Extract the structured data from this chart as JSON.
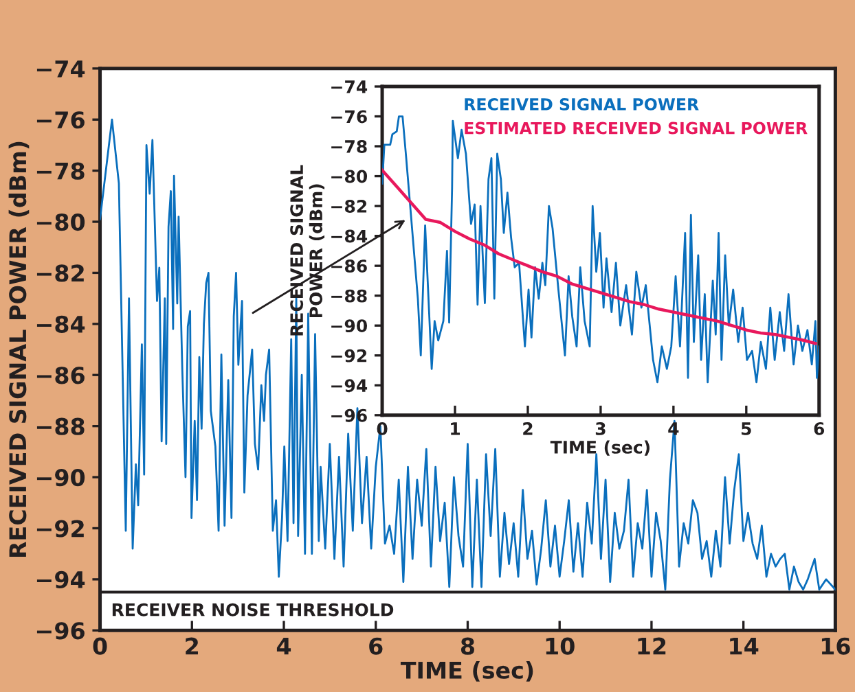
{
  "chart_data": [
    {
      "type": "line",
      "xlabel": "TIME (sec)",
      "ylabel": "RECEIVED SIGNAL POWER (dBm)",
      "xlim": [
        0,
        16
      ],
      "ylim": [
        -96,
        -74
      ],
      "xticks": [
        0,
        2,
        4,
        6,
        8,
        10,
        12,
        14,
        16
      ],
      "yticks": [
        -96,
        -94,
        -92,
        -90,
        -88,
        -86,
        -84,
        -82,
        -80,
        -78,
        -76,
        -74
      ],
      "grid": false,
      "legend": false,
      "marker": "none",
      "line_style": "solid",
      "ref_lines": [
        {
          "axis": "y",
          "value": -94.5,
          "label": "RECEIVER NOISE THRESHOLD",
          "color": "#231f20",
          "line_style": "solid"
        }
      ],
      "series": [
        {
          "color": "#0a6fbd",
          "x": [
            0,
            0.26,
            0.41,
            0.56,
            0.63,
            0.71,
            0.78,
            0.83,
            0.91,
            0.96,
            1.01,
            1.08,
            1.14,
            1.24,
            1.29,
            1.34,
            1.41,
            1.44,
            1.49,
            1.54,
            1.59,
            1.61,
            1.68,
            1.71,
            1.79,
            1.86,
            1.91,
            1.96,
            1.99,
            2.06,
            2.11,
            2.16,
            2.21,
            2.26,
            2.31,
            2.36,
            2.41,
            2.51,
            2.58,
            2.64,
            2.71,
            2.79,
            2.86,
            2.91,
            2.96,
            3.01,
            3.09,
            3.14,
            3.21,
            3.31,
            3.37,
            3.44,
            3.51,
            3.57,
            3.61,
            3.68,
            3.76,
            3.83,
            3.89,
            3.96,
            4.01,
            4.08,
            4.16,
            4.21,
            4.27,
            4.31,
            4.39,
            4.46,
            4.53,
            4.61,
            4.68,
            4.76,
            4.8,
            4.9,
            5.0,
            5.1,
            5.2,
            5.3,
            5.4,
            5.5,
            5.6,
            5.7,
            5.8,
            5.9,
            6.0,
            6.1,
            6.2,
            6.3,
            6.4,
            6.5,
            6.6,
            6.7,
            6.8,
            6.9,
            7.0,
            7.1,
            7.2,
            7.3,
            7.4,
            7.5,
            7.6,
            7.7,
            7.8,
            7.9,
            8.0,
            8.1,
            8.2,
            8.3,
            8.4,
            8.5,
            8.6,
            8.7,
            8.8,
            8.9,
            9.0,
            9.1,
            9.2,
            9.3,
            9.4,
            9.5,
            9.6,
            9.7,
            9.8,
            9.9,
            10.0,
            10.1,
            10.2,
            10.3,
            10.4,
            10.5,
            10.6,
            10.7,
            10.8,
            10.9,
            11.0,
            11.1,
            11.2,
            11.3,
            11.4,
            11.5,
            11.6,
            11.7,
            11.8,
            11.9,
            12.0,
            12.1,
            12.2,
            12.3,
            12.4,
            12.5,
            12.6,
            12.7,
            12.8,
            12.9,
            13.0,
            13.1,
            13.2,
            13.3,
            13.4,
            13.5,
            13.6,
            13.7,
            13.8,
            13.9,
            14.0,
            14.1,
            14.2,
            14.3,
            14.4,
            14.5,
            14.6,
            14.7,
            14.8,
            14.9,
            15.0,
            15.1,
            15.2,
            15.3,
            15.4,
            15.55,
            15.65,
            15.8,
            16.0
          ],
          "values": [
            -79.9,
            -76,
            -78.5,
            -92.1,
            -83,
            -92.8,
            -89.5,
            -91.1,
            -84.8,
            -89.9,
            -77,
            -78.9,
            -76.8,
            -83.1,
            -81.8,
            -88.6,
            -83,
            -88.7,
            -80.2,
            -78.8,
            -84.2,
            -78.2,
            -83.2,
            -79.8,
            -85.8,
            -90,
            -84.1,
            -83.5,
            -91.6,
            -87.8,
            -90.9,
            -85.3,
            -88.1,
            -84,
            -82.4,
            -82,
            -87.4,
            -88.8,
            -92.1,
            -85.2,
            -91.9,
            -86.2,
            -91.6,
            -83.7,
            -82,
            -85.6,
            -83.1,
            -90.6,
            -86.8,
            -85,
            -88.7,
            -89.7,
            -86.4,
            -87.8,
            -86,
            -85,
            -92.1,
            -90.9,
            -93.9,
            -91.6,
            -88.8,
            -92.5,
            -84.6,
            -91.8,
            -83,
            -92.3,
            -86,
            -93,
            -83.6,
            -93,
            -84.4,
            -92.5,
            -89.6,
            -92.8,
            -88.7,
            -93.2,
            -89.2,
            -93.5,
            -88.3,
            -92.1,
            -87.3,
            -91.8,
            -89.2,
            -92.8,
            -89.6,
            -88,
            -92.6,
            -91.9,
            -93,
            -90.1,
            -94.1,
            -89.6,
            -93.2,
            -90.1,
            -91.9,
            -88.9,
            -93.5,
            -89.6,
            -92.5,
            -91,
            -94.3,
            -90,
            -92.3,
            -93.5,
            -88.7,
            -94.3,
            -90.1,
            -94.3,
            -89.1,
            -92.3,
            -88.9,
            -93.9,
            -91.4,
            -93.4,
            -91.8,
            -93.9,
            -90.5,
            -93.2,
            -92.1,
            -94.2,
            -92.8,
            -90.9,
            -93.5,
            -91.9,
            -93.9,
            -92.5,
            -90.9,
            -93.7,
            -91.8,
            -93.9,
            -91,
            -92.6,
            -89.1,
            -93.2,
            -90.1,
            -94.1,
            -91.4,
            -92.8,
            -92.1,
            -90.1,
            -93.9,
            -91.8,
            -92.8,
            -90.5,
            -93.9,
            -91.4,
            -92.5,
            -94.4,
            -90.1,
            -87.8,
            -93.5,
            -91.8,
            -92.6,
            -90.9,
            -91.4,
            -93.2,
            -92.5,
            -93.9,
            -92.1,
            -93.5,
            -90,
            -92.6,
            -90.5,
            -89.1,
            -92.5,
            -91.4,
            -92.6,
            -93.2,
            -91.9,
            -93.9,
            -93,
            -93.5,
            -93.2,
            -93,
            -94.4,
            -93.5,
            -94.1,
            -94.4,
            -94,
            -93.2,
            -94.4,
            -94,
            -94.4
          ]
        }
      ]
    },
    {
      "type": "line",
      "xlabel": "TIME (sec)",
      "ylabel": "RECEIVED SIGNAL\nPOWER (dBm)",
      "xlim": [
        0,
        6
      ],
      "ylim": [
        -96,
        -74
      ],
      "xticks": [
        0,
        1,
        2,
        3,
        4,
        5,
        6
      ],
      "yticks": [
        -96,
        -94,
        -92,
        -90,
        -88,
        -86,
        -84,
        -82,
        -80,
        -78,
        -76,
        -74
      ],
      "grid": false,
      "legend": "top right",
      "marker": "none",
      "line_style": "solid",
      "series": [
        {
          "name": "RECEIVED SIGNAL POWER",
          "color": "#0a6fbd",
          "x": [
            0,
            0.03,
            0.11,
            0.14,
            0.2,
            0.23,
            0.28,
            0.33,
            0.39,
            0.49,
            0.53,
            0.59,
            0.68,
            0.72,
            0.77,
            0.84,
            0.89,
            0.92,
            0.96,
            0.97,
            1.04,
            1.09,
            1.15,
            1.22,
            1.27,
            1.31,
            1.35,
            1.41,
            1.46,
            1.5,
            1.54,
            1.58,
            1.63,
            1.67,
            1.72,
            1.77,
            1.82,
            1.88,
            1.96,
            2.01,
            2.05,
            2.1,
            2.15,
            2.2,
            2.24,
            2.29,
            2.34,
            2.42,
            2.51,
            2.56,
            2.61,
            2.67,
            2.72,
            2.78,
            2.85,
            2.89,
            2.94,
            2.99,
            3.04,
            3.08,
            3.15,
            3.21,
            3.27,
            3.35,
            3.43,
            3.49,
            3.56,
            3.62,
            3.72,
            3.78,
            3.84,
            3.91,
            3.97,
            4.03,
            4.09,
            4.16,
            4.2,
            4.24,
            4.28,
            4.34,
            4.38,
            4.43,
            4.47,
            4.54,
            4.58,
            4.62,
            4.66,
            4.71,
            4.76,
            4.82,
            4.89,
            4.95,
            5.01,
            5.08,
            5.14,
            5.2,
            5.27,
            5.33,
            5.39,
            5.46,
            5.52,
            5.58,
            5.65,
            5.71,
            5.77,
            5.84,
            5.9,
            5.95,
            5.97,
            6.0
          ],
          "values": [
            -80.5,
            -77.9,
            -77.9,
            -77.2,
            -77,
            -76,
            -76,
            -78.8,
            -82.3,
            -88.2,
            -92,
            -83.3,
            -92.9,
            -89.7,
            -91,
            -89.7,
            -85,
            -89.8,
            -80.8,
            -76.3,
            -78.8,
            -76.9,
            -78.5,
            -83.2,
            -81.9,
            -88.6,
            -82,
            -88.5,
            -80.2,
            -78.8,
            -88.2,
            -78.5,
            -80.2,
            -83.8,
            -81.1,
            -84.1,
            -86.1,
            -85.8,
            -91.4,
            -87.6,
            -90.8,
            -86.1,
            -88.2,
            -85.8,
            -87.3,
            -82,
            -83.5,
            -87.6,
            -92,
            -86.7,
            -89.4,
            -91.4,
            -86.1,
            -89.7,
            -91.4,
            -82,
            -86.4,
            -83.8,
            -88.8,
            -85.5,
            -89.1,
            -85.8,
            -90,
            -87.3,
            -90.6,
            -86.4,
            -88.8,
            -87.3,
            -92.3,
            -93.8,
            -91.4,
            -92.9,
            -91.4,
            -86.7,
            -91.4,
            -83.8,
            -93.5,
            -82.6,
            -91.1,
            -85.3,
            -92.3,
            -87.9,
            -93.8,
            -87,
            -90.6,
            -83.8,
            -92.3,
            -85.3,
            -90,
            -87.6,
            -91.1,
            -88.8,
            -92.3,
            -91.7,
            -93.8,
            -91.1,
            -92.9,
            -88.8,
            -92.3,
            -89.1,
            -91.7,
            -87.9,
            -92.6,
            -90,
            -91.7,
            -90.3,
            -92.6,
            -89.7,
            -93.5,
            -91.4
          ]
        },
        {
          "name": "ESTIMATED RECEIVED SIGNAL POWER",
          "color": "#e8185c",
          "x": [
            0,
            0.2,
            0.4,
            0.6,
            0.8,
            1.0,
            1.2,
            1.4,
            1.6,
            1.8,
            2.0,
            2.2,
            2.4,
            2.6,
            2.8,
            3.0,
            3.2,
            3.4,
            3.6,
            3.8,
            4.0,
            4.2,
            4.4,
            4.6,
            4.8,
            5.0,
            5.2,
            5.4,
            5.6,
            5.8,
            5.95
          ],
          "values": [
            -79.6,
            -80.7,
            -81.8,
            -82.9,
            -83.1,
            -83.7,
            -84.2,
            -84.6,
            -85.2,
            -85.6,
            -86.0,
            -86.4,
            -86.7,
            -87.2,
            -87.5,
            -87.8,
            -88.1,
            -88.4,
            -88.6,
            -88.9,
            -89.1,
            -89.3,
            -89.5,
            -89.7,
            -90.0,
            -90.3,
            -90.5,
            -90.6,
            -90.8,
            -91.0,
            -91.2
          ]
        }
      ]
    }
  ]
}
